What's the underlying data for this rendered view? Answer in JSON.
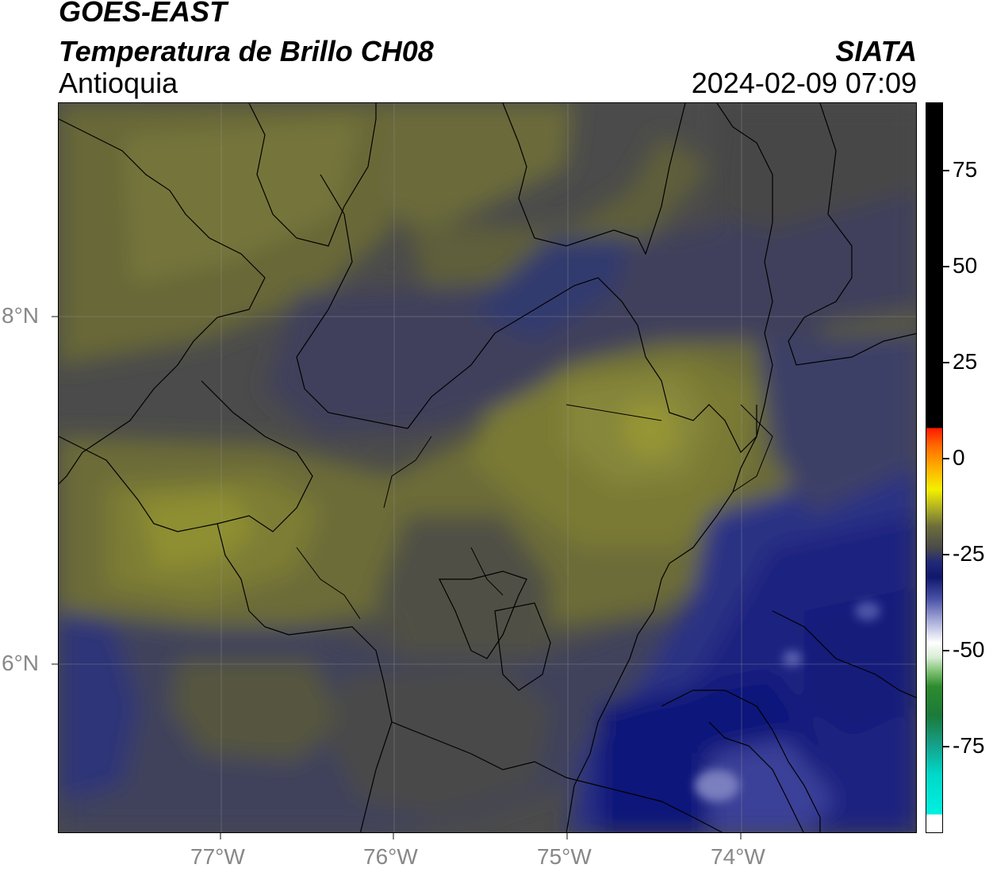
{
  "header": {
    "satellite": "GOES-EAST",
    "product": "Temperatura de Brillo CH08",
    "region": "Antioquia",
    "brand": "SIATA",
    "datetime": "2024-02-09 07:09"
  },
  "map": {
    "lon_ticks": [
      "77°W",
      "76°W",
      "75°W",
      "74°W"
    ],
    "lat_ticks": [
      "8°N",
      "6°N"
    ],
    "gridlines": true
  },
  "colorbar": {
    "ticks": [
      "75",
      "50",
      "25",
      "0",
      "-25",
      "-50",
      "-75"
    ],
    "colors": {
      "top": "#000000",
      "warm": "#ff2a00",
      "yellow": "#f4f000",
      "olive": "#80802a",
      "gray": "#4a4a4a",
      "navy": "#10186e",
      "light": "#ffffff",
      "green": "#2e8b2e",
      "cyan": "#00e5d0"
    }
  },
  "colors": {
    "olive_field": "#6e6e3a",
    "yellow_field": "#8d8d33",
    "gray_field": "#4c4c4c",
    "slate_field": "#3d3f5e",
    "navy_field": "#232c86",
    "deep_navy": "#141b7a"
  }
}
